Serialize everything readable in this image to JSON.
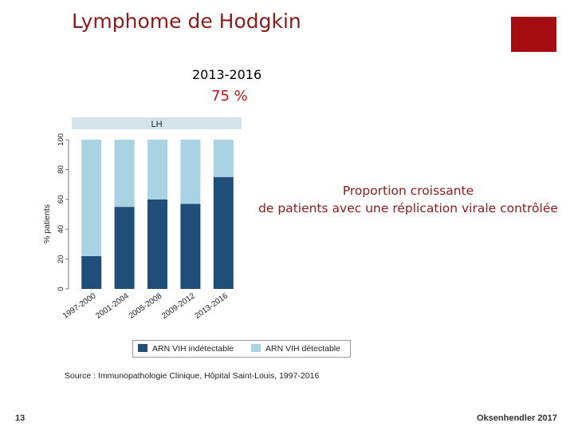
{
  "slide": {
    "title": "Lymphome de Hodgkin",
    "period": "2013-2016",
    "percentage": "75 %",
    "note_line1": "Proportion croissante",
    "note_line2": "de patients avec une réplication virale contrôlée",
    "source": "Source : Immunopathologie Clinique, Hôpital Saint-Louis, 1997-2016",
    "page_number": "13",
    "credit": "Oksenhendler 2017",
    "accent_color": "#a30d12"
  },
  "chart_data": {
    "type": "bar",
    "stacked": true,
    "panel_title": "LH",
    "ylabel": "% patients",
    "ylim": [
      0,
      100
    ],
    "yticks": [
      0,
      20,
      40,
      60,
      80,
      100
    ],
    "categories": [
      "1997-2000",
      "2001-2004",
      "2005-2008",
      "2009-2012",
      "2013-2016"
    ],
    "series": [
      {
        "name": "ARN VIH indétectable",
        "color": "#1f4e79",
        "values": [
          22,
          55,
          60,
          57,
          75
        ]
      },
      {
        "name": "ARN VIH détectable",
        "color": "#a9d3e3",
        "values": [
          78,
          45,
          40,
          43,
          25
        ]
      }
    ],
    "legend_position": "bottom",
    "panel_header_color": "#d6e2ea"
  }
}
